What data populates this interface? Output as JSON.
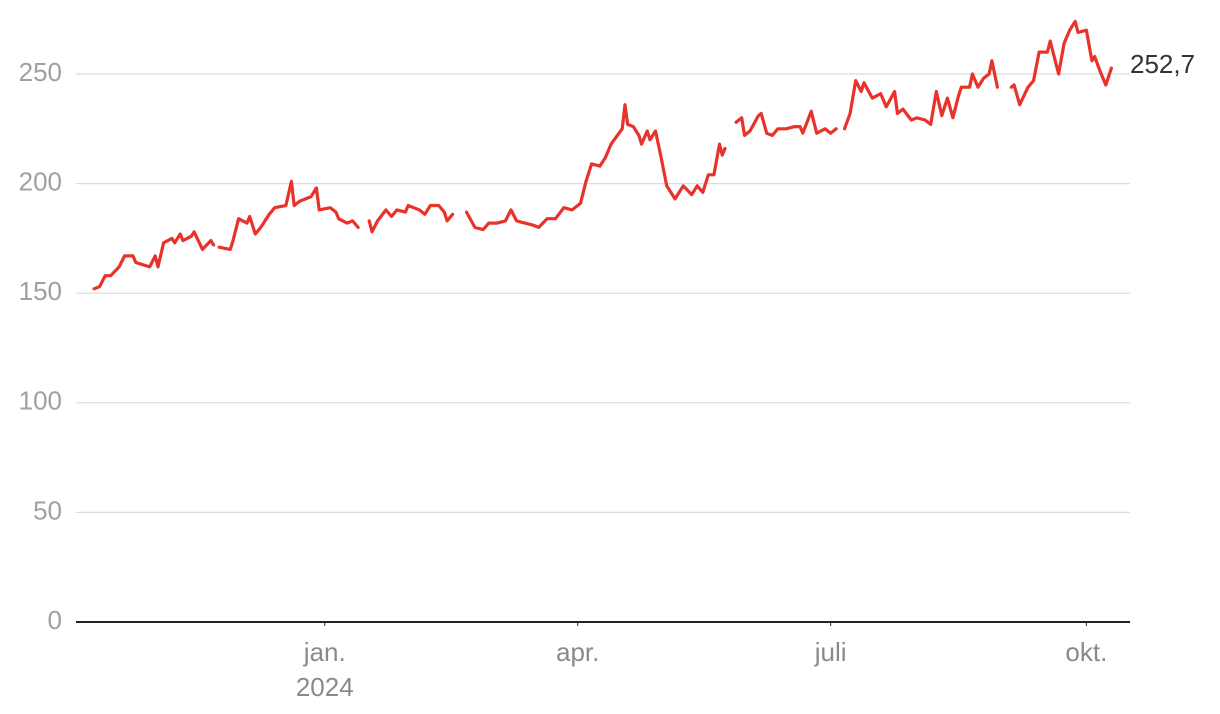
{
  "chart_data": {
    "type": "line",
    "color": "#e8322a",
    "grid": true,
    "x": [
      0,
      2,
      4,
      6,
      9,
      11,
      14,
      15,
      20,
      22,
      23,
      25,
      28,
      29,
      31,
      32,
      35,
      36,
      39,
      42,
      43,
      44,
      45,
      49,
      50,
      52,
      55,
      56,
      58,
      60,
      63,
      65,
      69,
      71,
      72,
      74,
      78,
      80,
      81,
      85,
      87,
      88,
      91,
      93,
      95,
      96,
      99,
      100,
      102,
      105,
      107,
      109,
      112,
      113,
      115,
      117,
      119,
      121,
      124,
      126,
      127,
      129,
      131,
      134,
      137,
      140,
      142,
      145,
      148,
      150,
      152,
      155,
      158,
      160,
      163,
      166,
      169,
      172,
      175,
      177,
      179,
      182,
      184,
      186,
      190,
      191,
      192,
      194,
      196,
      197,
      199,
      200,
      202,
      204,
      206,
      209,
      212,
      215,
      217,
      219,
      221,
      223,
      225,
      226,
      227,
      228,
      231,
      233,
      234,
      236,
      239,
      240,
      242,
      244,
      246,
      249,
      252,
      254,
      255,
      258,
      260,
      263,
      265,
      267,
      268,
      270,
      272,
      274,
      276,
      277,
      280,
      283,
      284,
      285,
      288,
      289,
      291,
      294,
      296,
      299,
      301,
      303,
      305,
      307,
      309,
      311,
      312,
      315,
      316,
      318,
      320,
      322,
      323,
      325,
      327,
      330,
      331,
      333,
      336,
      338,
      340,
      343,
      344,
      347,
      349,
      351,
      353,
      354,
      357,
      359,
      360,
      362,
      364,
      366
    ],
    "values": [
      152,
      153,
      158,
      158,
      162,
      167,
      167,
      164,
      162,
      167,
      162,
      173,
      175,
      173,
      177,
      174,
      176,
      178,
      170,
      174,
      172,
      null,
      171,
      170,
      174,
      184,
      182,
      185,
      177,
      180,
      186,
      189,
      190,
      201,
      190,
      192,
      194,
      198,
      188,
      189,
      187,
      184,
      182,
      183,
      180,
      null,
      183,
      178,
      183,
      188,
      185,
      188,
      187,
      190,
      189,
      188,
      186,
      190,
      190,
      187,
      183,
      186,
      null,
      187,
      180,
      179,
      182,
      182,
      183,
      188,
      183,
      182,
      181,
      180,
      184,
      184,
      189,
      188,
      191,
      201,
      209,
      208,
      212,
      218,
      225,
      236,
      227,
      226,
      222,
      218,
      224,
      220,
      224,
      212,
      199,
      193,
      199,
      195,
      199,
      196,
      204,
      204,
      218,
      213,
      216,
      null,
      228,
      230,
      222,
      224,
      231,
      232,
      223,
      222,
      225,
      225,
      226,
      226,
      223,
      233,
      223,
      225,
      223,
      225,
      null,
      225,
      232,
      247,
      242,
      246,
      239,
      241,
      238,
      235,
      242,
      232,
      234,
      229,
      230,
      229,
      227,
      242,
      231,
      239,
      230,
      240,
      244,
      244,
      250,
      244,
      248,
      250,
      256,
      244,
      null,
      244,
      245,
      236,
      244,
      247,
      260,
      260,
      265,
      250,
      264,
      270,
      274,
      269,
      270,
      256,
      258,
      251,
      245,
      252.7
    ],
    "end_label": "252,7",
    "xlim": [
      -6.5,
      372.7
    ],
    "xticks": [
      {
        "value": 83,
        "label": "jan.\n2024"
      },
      {
        "value": 174,
        "label": "apr."
      },
      {
        "value": 265,
        "label": "juli"
      },
      {
        "value": 357,
        "label": "okt."
      }
    ],
    "ylim": [
      0,
      250
    ],
    "yticks": [
      0,
      50,
      100,
      150,
      200,
      250
    ]
  }
}
